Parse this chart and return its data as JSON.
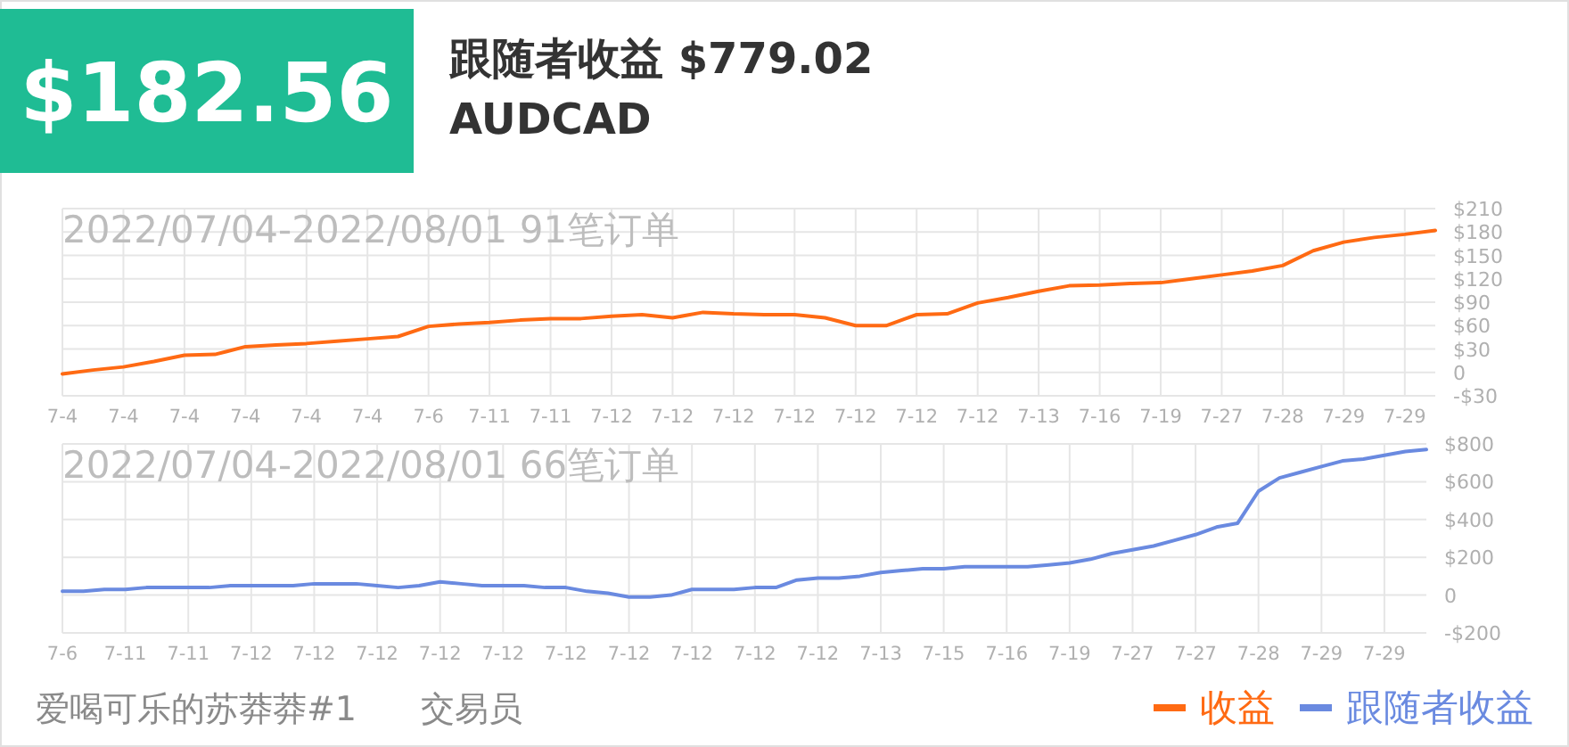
{
  "chart_data": [
    {
      "type": "other",
      "title": "$182.56",
      "subtitle": "跟随者收益 $779.02",
      "annotations": [
        "AUDCAD",
        "爱喝可乐的苏莽莽#1",
        "交易员"
      ]
    },
    {
      "type": "line",
      "title": "2022/07/04-2022/08/01 91笔订单",
      "categories": [
        "7-4",
        null,
        "7-4",
        null,
        "7-4",
        null,
        "7-4",
        null,
        "7-4",
        null,
        "7-4",
        null,
        "7-6",
        null,
        "7-11",
        null,
        "7-11",
        null,
        "7-12",
        null,
        "7-12",
        null,
        "7-12",
        null,
        "7-12",
        null,
        "7-12",
        null,
        "7-12",
        null,
        "7-12",
        null,
        "7-13",
        null,
        "7-16",
        null,
        "7-19",
        null,
        "7-27",
        null,
        "7-28",
        null,
        "7-29",
        null,
        "7-29",
        null
      ],
      "series": [
        {
          "name": "收益",
          "color": "#ff6a13",
          "values": [
            -2,
            3,
            7,
            14,
            22,
            23,
            33,
            35,
            37,
            40,
            43,
            46,
            59,
            62,
            64,
            67,
            69,
            69,
            72,
            74,
            70,
            77,
            75,
            74,
            74,
            70,
            60,
            60,
            74,
            75,
            89,
            96,
            104,
            111,
            112,
            114,
            115,
            120,
            125,
            130,
            137,
            156,
            167,
            173,
            177,
            182
          ]
        }
      ],
      "ylim": [
        -30,
        210
      ],
      "yticks": [
        {
          "value": -30,
          "label": "-$30"
        },
        0,
        {
          "value": 30,
          "label": "$30"
        },
        {
          "value": 60,
          "label": "$60"
        },
        {
          "value": 90,
          "label": "$90"
        },
        {
          "value": 120,
          "label": "$120"
        },
        {
          "value": 150,
          "label": "$150"
        },
        {
          "value": 180,
          "label": "$180"
        },
        {
          "value": 210,
          "label": "$210"
        }
      ],
      "grid": true,
      "legend": "bottom right",
      "marker": "none",
      "line_style": "solid"
    },
    {
      "type": "line",
      "title": "2022/07/04-2022/08/01 66笔订单",
      "categories": [
        "7-6",
        null,
        null,
        "7-11",
        null,
        null,
        "7-11",
        null,
        null,
        "7-12",
        null,
        null,
        "7-12",
        null,
        null,
        "7-12",
        null,
        null,
        "7-12",
        null,
        null,
        "7-12",
        null,
        null,
        "7-12",
        null,
        null,
        "7-12",
        null,
        null,
        "7-12",
        null,
        null,
        "7-12",
        null,
        null,
        "7-12",
        null,
        null,
        "7-13",
        null,
        null,
        "7-15",
        null,
        null,
        "7-16",
        null,
        null,
        "7-19",
        null,
        null,
        "7-27",
        null,
        null,
        "7-27",
        null,
        null,
        "7-28",
        null,
        null,
        "7-29",
        null,
        null,
        "7-29",
        null,
        null
      ],
      "series": [
        {
          "name": "跟随者收益",
          "color": "#6a8ae0",
          "values": [
            20,
            20,
            30,
            30,
            40,
            40,
            40,
            40,
            50,
            50,
            50,
            50,
            60,
            60,
            60,
            50,
            40,
            50,
            70,
            60,
            50,
            50,
            50,
            40,
            40,
            20,
            10,
            -10,
            -10,
            0,
            30,
            30,
            30,
            40,
            40,
            80,
            90,
            90,
            100,
            120,
            130,
            140,
            140,
            150,
            150,
            150,
            150,
            160,
            170,
            190,
            220,
            240,
            260,
            290,
            320,
            360,
            380,
            550,
            620,
            650,
            680,
            710,
            720,
            740,
            760,
            770
          ]
        }
      ],
      "ylim": [
        -200,
        800
      ],
      "yticks": [
        {
          "value": -200,
          "label": "-$200"
        },
        0,
        {
          "value": 200,
          "label": "$200"
        },
        {
          "value": 400,
          "label": "$400"
        },
        {
          "value": 600,
          "label": "$600"
        },
        {
          "value": 800,
          "label": "$800"
        }
      ],
      "grid": true,
      "legend": "bottom right",
      "marker": "none",
      "line_style": "solid"
    }
  ]
}
